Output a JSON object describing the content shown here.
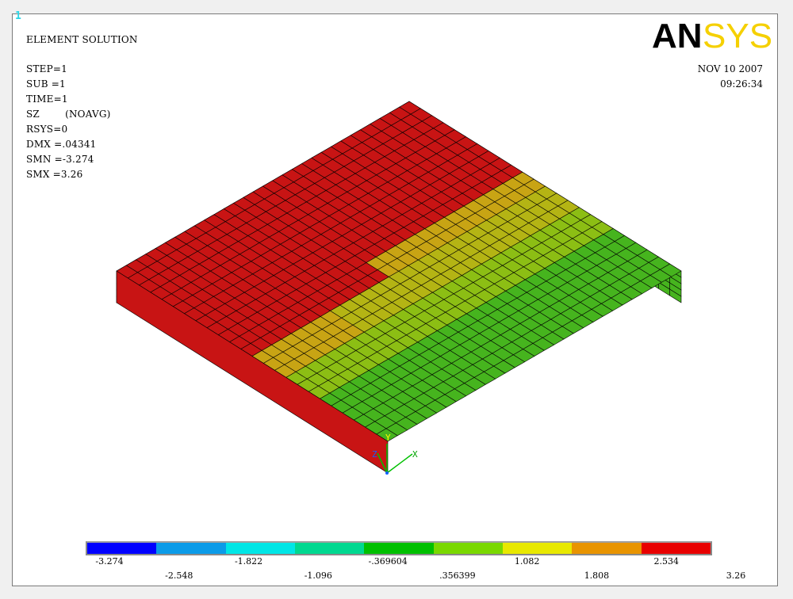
{
  "window_number": "1",
  "header": {
    "title": "ELEMENT SOLUTION",
    "info_lines": [
      "STEP=1",
      "SUB =1",
      "TIME=1",
      "SZ        (NOAVG)",
      "RSYS=0",
      "DMX =.04341",
      "SMN =-3.274",
      "SMX =3.26"
    ],
    "date": "NOV 10 2007",
    "time": "09:26:34"
  },
  "logo": {
    "text_dark": "AN",
    "text_light": "SYS",
    "dark_color": "#000000",
    "light_color": "#f5d000"
  },
  "triad": {
    "axis_y": "Y",
    "axis_z": "Z",
    "axis_x": "X"
  },
  "legend": {
    "colors": [
      "#0000ff",
      "#0b9be8",
      "#00e6e6",
      "#00d890",
      "#00c000",
      "#7ad800",
      "#e8e800",
      "#e89400",
      "#e80000"
    ],
    "labels_top": [
      "-3.274",
      "-1.822",
      "-.369604",
      "1.082",
      "2.534"
    ],
    "labels_bottom": [
      "-2.548",
      "-1.096",
      ".356399",
      "1.808",
      "3.26"
    ]
  }
}
